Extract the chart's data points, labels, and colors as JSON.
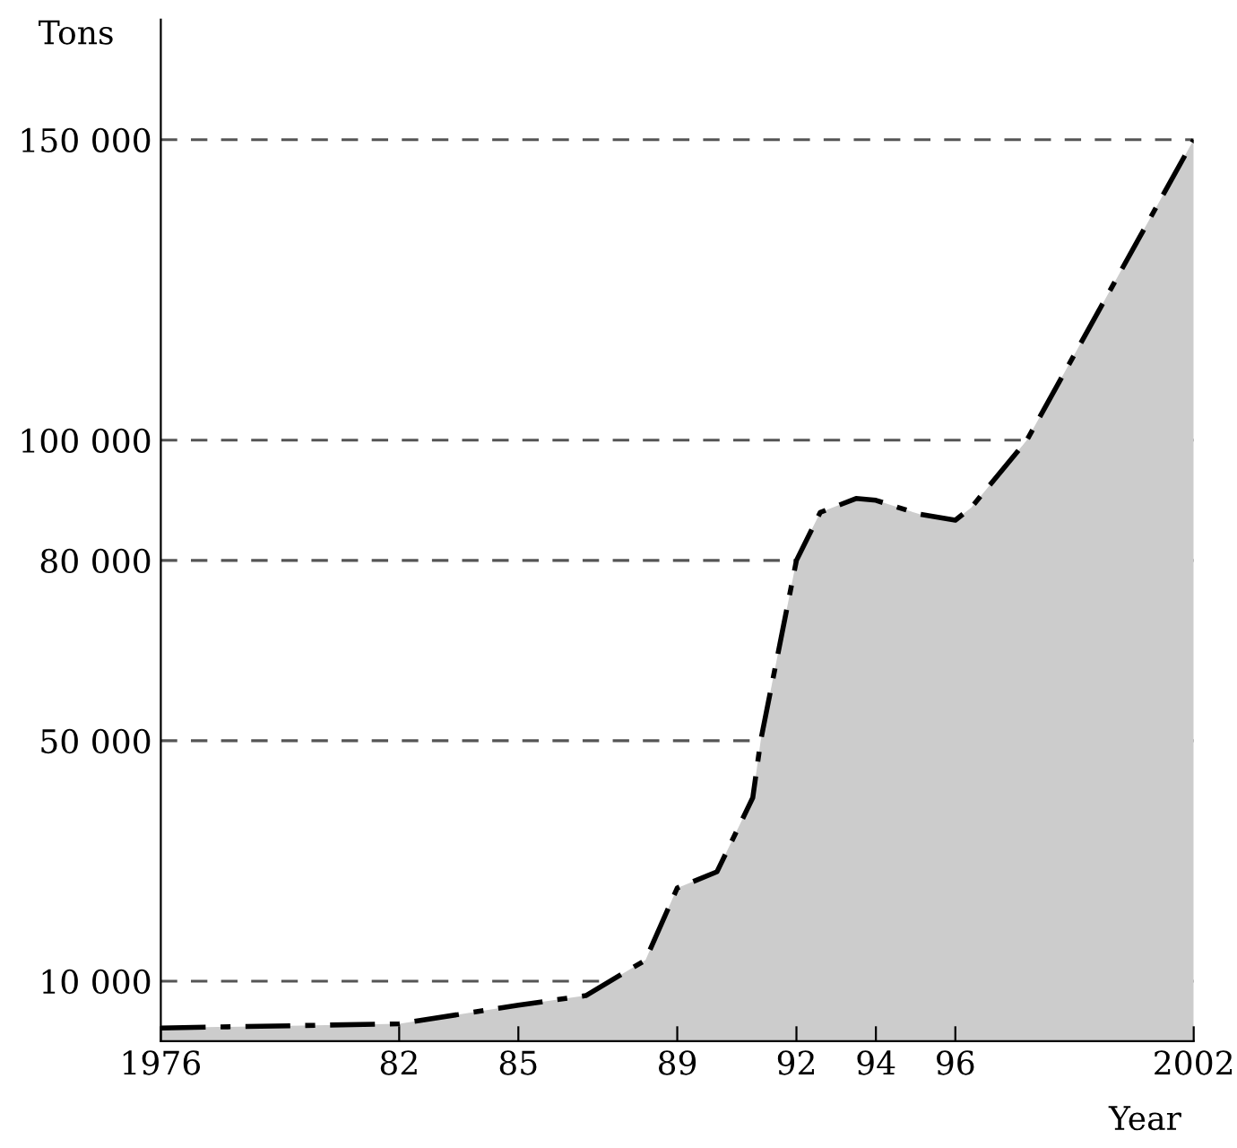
{
  "chart_data": {
    "type": "area",
    "xlabel": "Year",
    "ylabel": "Tons",
    "x": [
      1976,
      1982,
      1985,
      1986.7,
      1988.2,
      1989,
      1990,
      1990.9,
      1991.1,
      1992,
      1992.6,
      1993.5,
      1994,
      1995.1,
      1996,
      1996.4,
      1997.8,
      2002
    ],
    "series": [
      {
        "color": "#cccccc",
        "values": [
          2200,
          2900,
          6000,
          7600,
          13500,
          25500,
          28200,
          40500,
          50000,
          80000,
          88000,
          90300,
          90000,
          87700,
          86700,
          88800,
          100000,
          150000
        ]
      }
    ],
    "xlim": [
      1976,
      2002
    ],
    "ylim": [
      0,
      170000
    ],
    "xticks": [
      1976,
      {
        "value": 1982,
        "label": "82"
      },
      {
        "value": 1985,
        "label": "85"
      },
      {
        "value": 1989,
        "label": "89"
      },
      {
        "value": 1992,
        "label": "92"
      },
      {
        "value": 1994,
        "label": "94"
      },
      {
        "value": 1996,
        "label": "96"
      },
      2002
    ],
    "yticks": [
      {
        "value": 10000,
        "label": "10 000"
      },
      {
        "value": 50000,
        "label": "50 000"
      },
      {
        "value": 80000,
        "label": "80 000"
      },
      {
        "value": 100000,
        "label": "100 000"
      },
      {
        "value": 150000,
        "label": "150 000"
      }
    ],
    "grid": "y",
    "line_style": "dashed"
  }
}
